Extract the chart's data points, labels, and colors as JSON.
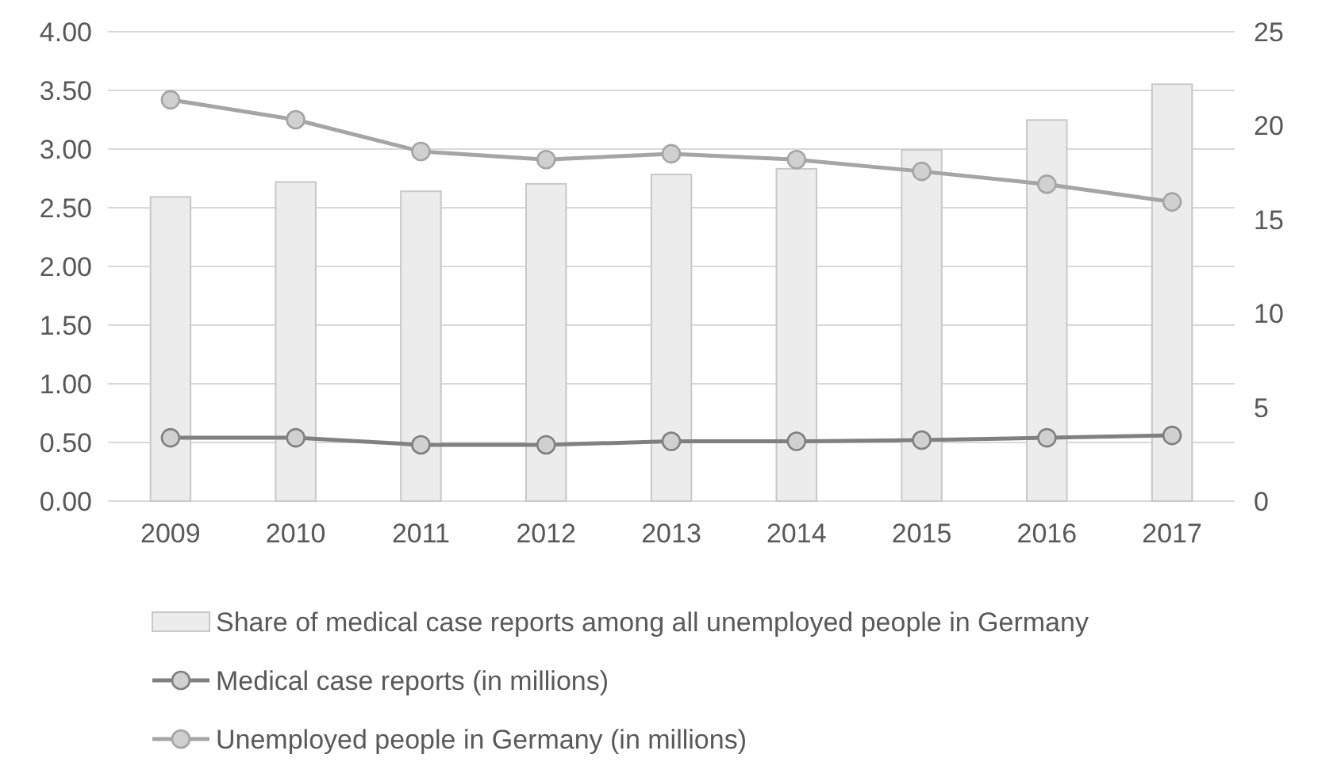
{
  "chart_data": {
    "type": "bar",
    "categories": [
      "2009",
      "2010",
      "2011",
      "2012",
      "2013",
      "2014",
      "2015",
      "2016",
      "2017"
    ],
    "series": [
      {
        "name": "Share of medical case reports among all unemployed people in Germany",
        "axis": "y2",
        "color": "#ececec",
        "values": [
          16.2,
          17.0,
          16.5,
          16.9,
          17.4,
          17.7,
          18.7,
          20.3,
          22.2
        ]
      },
      {
        "name": "Medical case reports (in millions)",
        "type": "line",
        "color": "#808080",
        "values": [
          0.54,
          0.54,
          0.48,
          0.48,
          0.51,
          0.51,
          0.52,
          0.54,
          0.56
        ]
      },
      {
        "name": "Unemployed people in Germany (in millions)",
        "type": "line",
        "color": "#a5a5a5",
        "values": [
          3.42,
          3.25,
          2.98,
          2.91,
          2.96,
          2.91,
          2.81,
          2.7,
          2.55
        ]
      }
    ],
    "ylim": [
      0,
      4
    ],
    "yticks": [
      {
        "value": 0,
        "label": "0.00"
      },
      {
        "value": 0.5,
        "label": "0.50"
      },
      {
        "value": 1,
        "label": "1.00"
      },
      {
        "value": 1.5,
        "label": "1.50"
      },
      {
        "value": 2,
        "label": "2.00"
      },
      {
        "value": 2.5,
        "label": "2.50"
      },
      {
        "value": 3,
        "label": "3.00"
      },
      {
        "value": 3.5,
        "label": "3.50"
      },
      {
        "value": 4,
        "label": "4.00"
      }
    ],
    "y2lim": [
      0,
      25
    ],
    "y2ticks": [
      0,
      5,
      10,
      15,
      20,
      25
    ],
    "grid": "y",
    "legend": "bottom",
    "marker": "circle",
    "line_style": "solid"
  }
}
